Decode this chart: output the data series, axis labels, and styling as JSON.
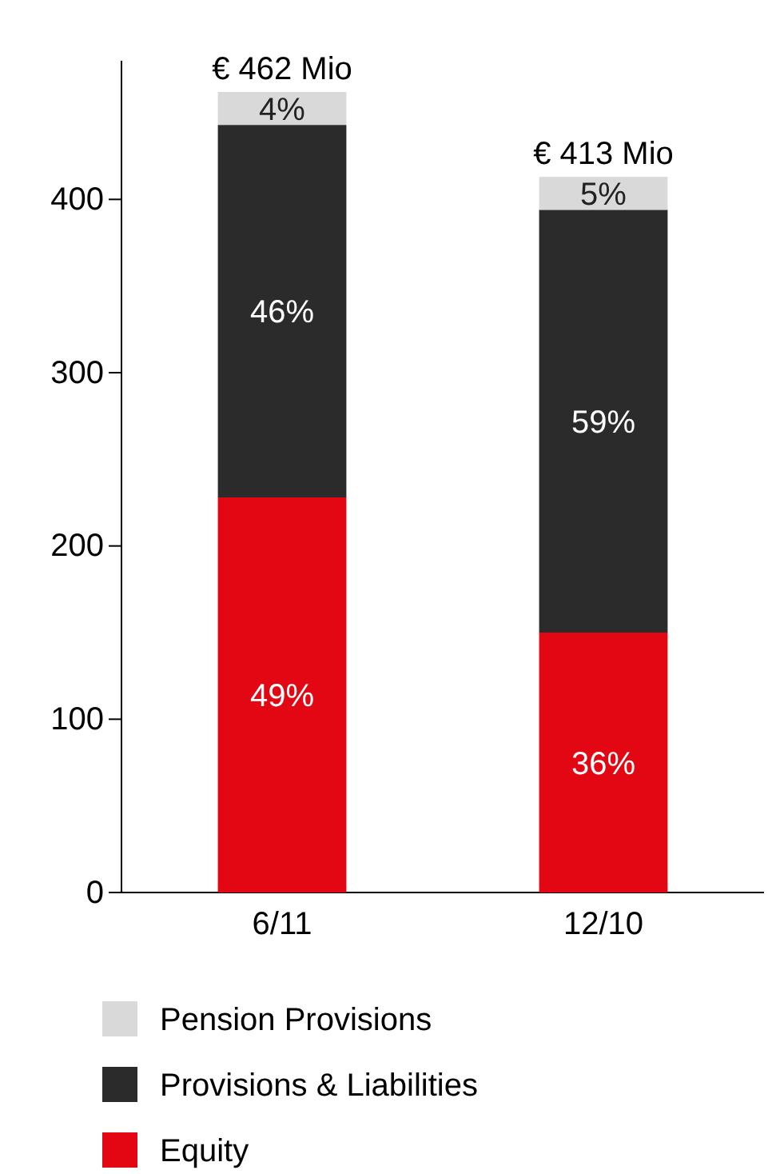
{
  "chart_data": {
    "type": "bar",
    "stacked": true,
    "categories": [
      "6/11",
      "12/10"
    ],
    "series": [
      {
        "name": "Equity",
        "color": "#e30613",
        "values": [
          228,
          150
        ]
      },
      {
        "name": "Provisions & Liabilities",
        "color": "#2b2b2b",
        "values": [
          215,
          244
        ]
      },
      {
        "name": "Pension Provisions",
        "color": "#d9d9d9",
        "values": [
          19,
          19
        ]
      }
    ],
    "annotations": [
      "49%",
      "36%",
      "46%",
      "59%",
      "4%",
      "5%"
    ],
    "totals": [
      "€ 462 Mio",
      "€ 413 Mio"
    ],
    "ylim": [
      0,
      480
    ],
    "yticks": [
      0,
      100,
      200,
      300,
      400
    ],
    "grid": false,
    "legend": "bottom"
  }
}
